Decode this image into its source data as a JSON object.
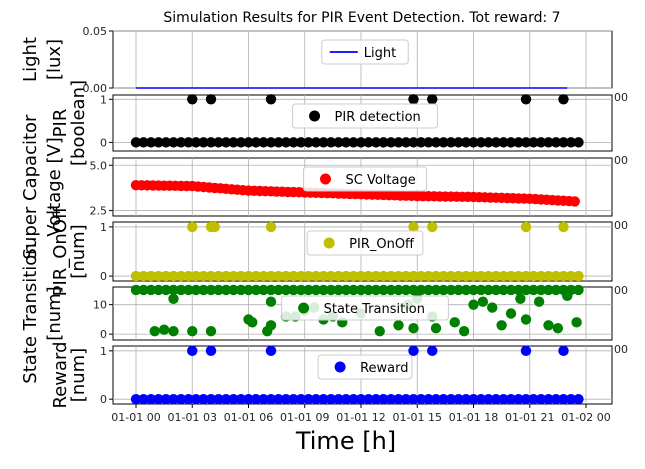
{
  "title": "Simulation Results for PIR Event Detection. Tot reward: 7",
  "xlabel": "Time [h]",
  "x_ticks": [
    "01-01 00",
    "01-01 03",
    "01-01 06",
    "01-01 09",
    "01-01 12",
    "01-01 15",
    "01-01 18",
    "01-01 21",
    "01-02 00"
  ],
  "chart_data": [
    {
      "type": "line",
      "ylabel": "Light\n[lux]",
      "series": [
        {
          "name": "Light",
          "color": "#0000ff"
        }
      ],
      "ylim": [
        0.0,
        0.05
      ],
      "yticks": [
        "0.00",
        "0.05"
      ],
      "x": [
        0,
        23
      ],
      "values": [
        0,
        0
      ],
      "grid": true,
      "legend": "top-center"
    },
    {
      "type": "scatter",
      "ylabel": "PIR\n[boolean]",
      "series": [
        {
          "name": "PIR detection",
          "color": "#000000"
        }
      ],
      "ylim": [
        -0.2,
        1.1
      ],
      "yticks": [
        "0",
        "1"
      ],
      "ones_at_h": [
        3.0,
        4.0,
        7.2,
        14.8,
        15.8,
        20.8,
        22.8
      ],
      "grid": true,
      "legend": "top-center"
    },
    {
      "type": "scatter",
      "ylabel": "Super Capacitor\nVoltage [V]",
      "series": [
        {
          "name": "SC Voltage",
          "color": "#ff0000"
        }
      ],
      "ylim": [
        2.2,
        5.4
      ],
      "yticks": [
        "2.5",
        "5.0"
      ],
      "x_h": [
        0,
        3,
        6,
        9,
        12,
        15,
        18,
        21,
        23.5
      ],
      "values": [
        3.9,
        3.85,
        3.6,
        3.5,
        3.4,
        3.3,
        3.25,
        3.15,
        3.0
      ],
      "grid": true,
      "legend": "top-center"
    },
    {
      "type": "scatter",
      "ylabel": "PIR_OnOff\n[num]",
      "series": [
        {
          "name": "PIR_OnOff",
          "color": "#bfbf00"
        }
      ],
      "ylim": [
        -0.1,
        1.1
      ],
      "yticks": [
        "0",
        "1"
      ],
      "ones_at_h": [
        3.0,
        4.0,
        4.2,
        7.2,
        14.8,
        15.8,
        20.8,
        22.8
      ],
      "grid": true,
      "legend": "top-center"
    },
    {
      "type": "scatter",
      "ylabel": "State Transition\n[num]",
      "series": [
        {
          "name": "State Transition",
          "color": "#008000"
        }
      ],
      "ylim": [
        -2,
        16
      ],
      "yticks": [
        "0",
        "10"
      ],
      "points": [
        [
          1.0,
          1
        ],
        [
          1.5,
          1.5
        ],
        [
          2.0,
          12
        ],
        [
          2.0,
          1
        ],
        [
          3.0,
          1
        ],
        [
          4.0,
          1
        ],
        [
          6.0,
          5
        ],
        [
          6.2,
          4
        ],
        [
          7.0,
          1
        ],
        [
          7.2,
          3
        ],
        [
          7.2,
          11
        ],
        [
          8.0,
          6
        ],
        [
          8.5,
          6
        ],
        [
          9.0,
          8
        ],
        [
          9.5,
          9
        ],
        [
          10.0,
          5
        ],
        [
          10.5,
          6
        ],
        [
          11.0,
          4
        ],
        [
          12.0,
          7
        ],
        [
          13.0,
          1
        ],
        [
          14.0,
          3
        ],
        [
          14.5,
          10
        ],
        [
          14.8,
          2
        ],
        [
          15.0,
          12
        ],
        [
          15.8,
          6
        ],
        [
          16.0,
          2
        ],
        [
          17.0,
          4
        ],
        [
          17.5,
          1
        ],
        [
          18.0,
          10
        ],
        [
          18.5,
          11
        ],
        [
          19.0,
          9
        ],
        [
          19.5,
          3
        ],
        [
          20.0,
          7
        ],
        [
          20.5,
          12
        ],
        [
          20.8,
          5
        ],
        [
          21.5,
          11
        ],
        [
          22.0,
          3
        ],
        [
          22.5,
          2
        ],
        [
          23.0,
          13
        ],
        [
          23.5,
          4
        ]
      ],
      "baseline_value": 15,
      "grid": true,
      "legend": "top-center"
    },
    {
      "type": "scatter",
      "ylabel": "Reward\n[num]",
      "series": [
        {
          "name": "Reward",
          "color": "#0000ff"
        }
      ],
      "ylim": [
        -0.1,
        1.1
      ],
      "yticks": [
        "0",
        "1"
      ],
      "ones_at_h": [
        3.0,
        4.0,
        7.2,
        14.8,
        15.8,
        20.8,
        22.8
      ],
      "grid": true,
      "legend": "top-center"
    }
  ],
  "overlap_right_labels": [
    "00",
    "00",
    "00",
    "00",
    "00"
  ]
}
